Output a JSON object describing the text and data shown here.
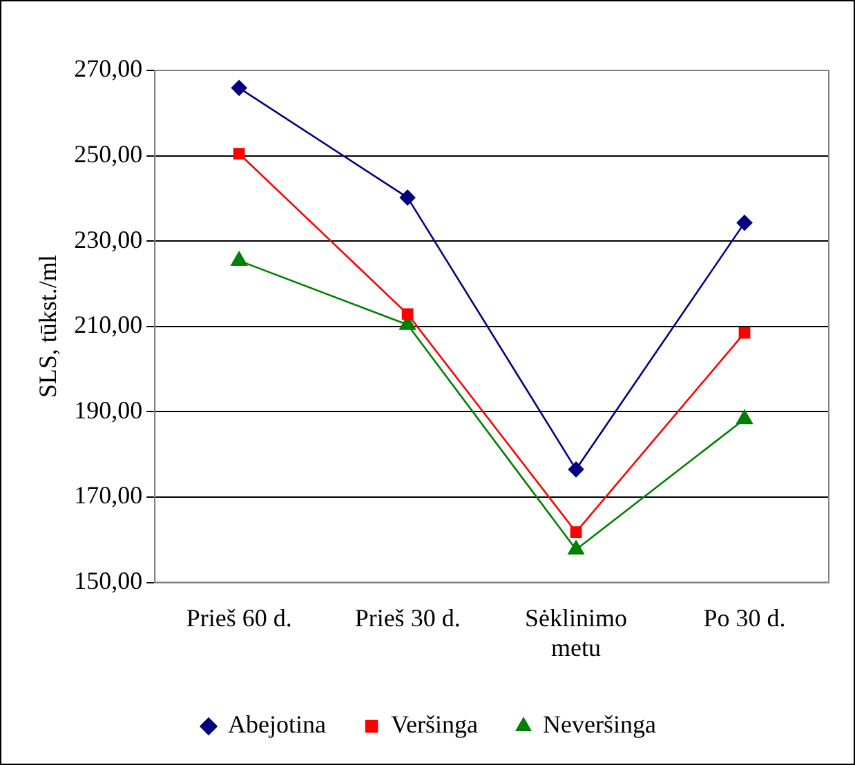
{
  "chart_data": {
    "type": "line",
    "ylabel": "SLS, tūkst./ml",
    "categories": [
      "Prieš 60 d.",
      "Prieš 30 d.",
      "Sėklinimo metu",
      "Po 30 d."
    ],
    "series": [
      {
        "name": "Abejotina",
        "color": "#000080",
        "marker": "diamond",
        "values": [
          265.9,
          240.2,
          176.5,
          234.3
        ]
      },
      {
        "name": "Veršinga",
        "color": "#ff0000",
        "marker": "square",
        "values": [
          250.5,
          212.9,
          161.8,
          208.5
        ]
      },
      {
        "name": "Neveršinga",
        "color": "#008000",
        "marker": "triangle",
        "values": [
          225.4,
          210.4,
          157.7,
          188.3
        ]
      }
    ],
    "ylim": [
      150,
      270
    ],
    "yticks": [
      {
        "value": 150,
        "label": "150,00"
      },
      {
        "value": 170,
        "label": "170,00"
      },
      {
        "value": 190,
        "label": "190,00"
      },
      {
        "value": 210,
        "label": "210,00"
      },
      {
        "value": 230,
        "label": "230,00"
      },
      {
        "value": 250,
        "label": "250,00"
      },
      {
        "value": 270,
        "label": "270,00"
      }
    ],
    "grid": "y",
    "legend": "bottom",
    "line_style": "solid"
  }
}
